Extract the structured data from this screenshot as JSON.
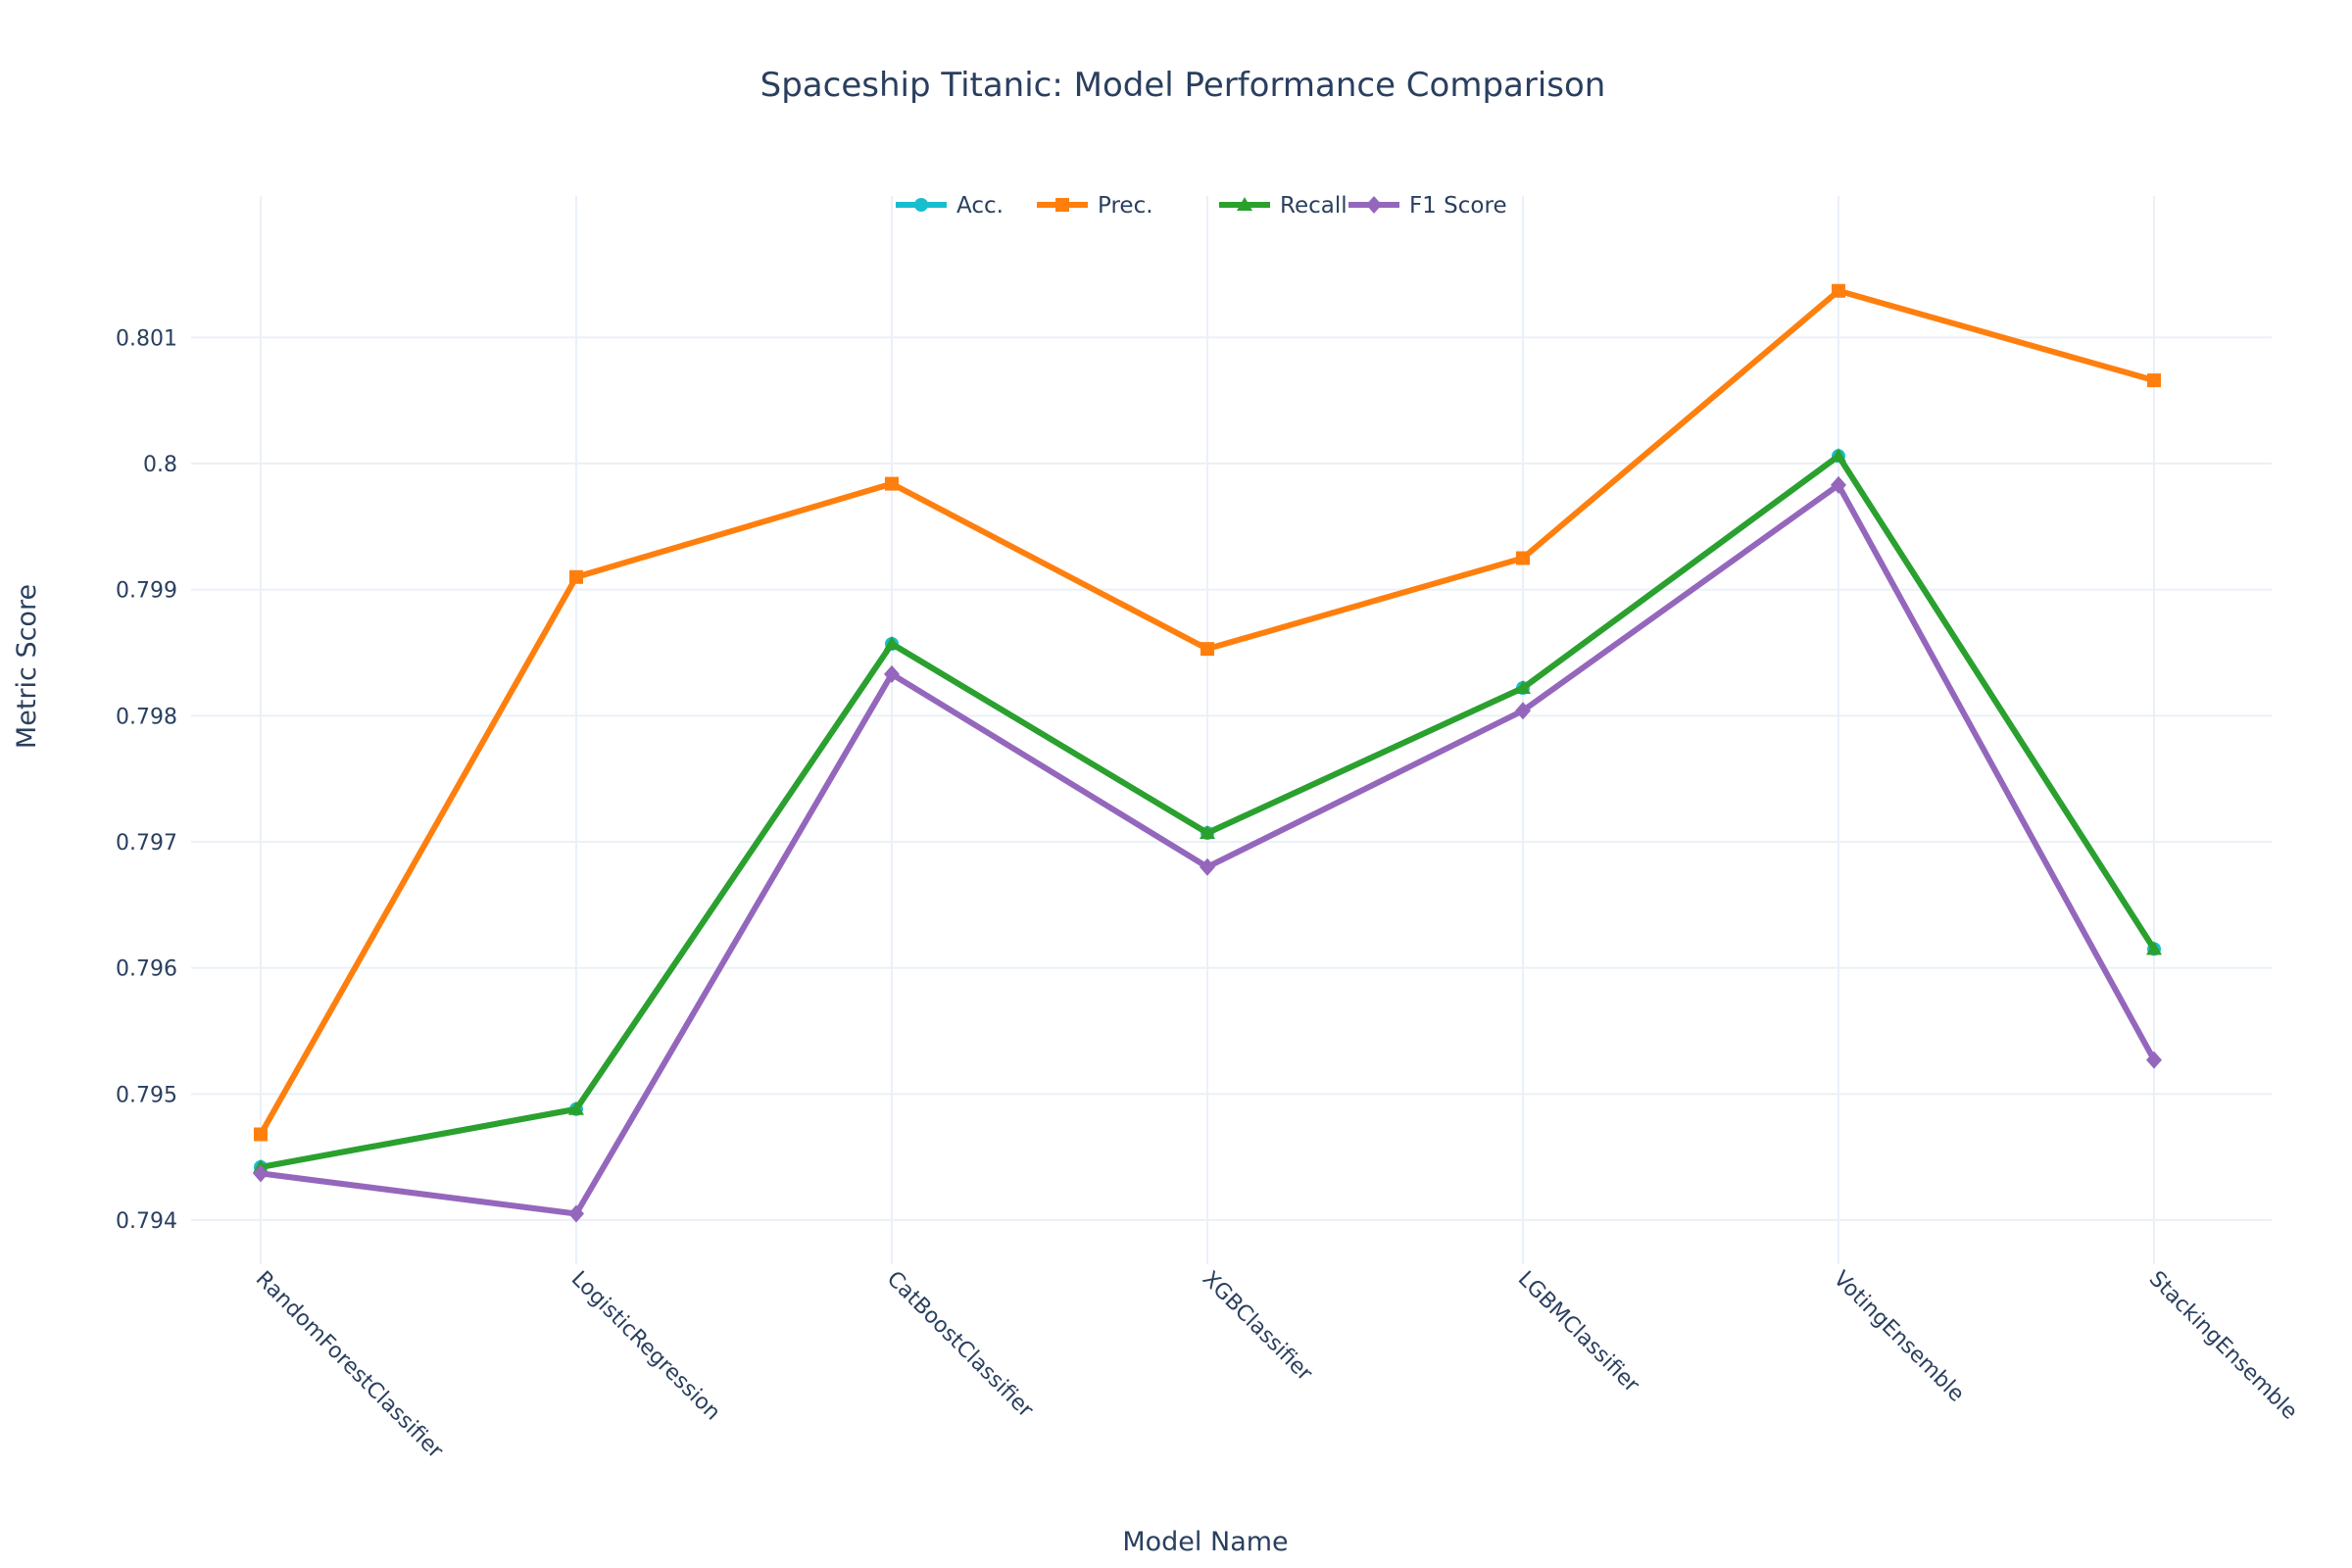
{
  "chart_data": {
    "type": "line",
    "title": "Spaceship Titanic: Model Performance Comparison",
    "xlabel": "Model Name",
    "ylabel": "Metric Score",
    "categories": [
      "RandomForestClassifier",
      "LogisticRegression",
      "CatBoostClassifier",
      "XGBClassifier",
      "LGBMClassifier",
      "VotingEnsemble",
      "StackingEnsemble"
    ],
    "ylim": [
      0.79365,
      0.80185
    ],
    "yticks": [
      0.794,
      0.795,
      0.796,
      0.797,
      0.798,
      0.799,
      0.8,
      0.801
    ],
    "ytick_labels": [
      "0.794",
      "0.795",
      "0.796",
      "0.797",
      "0.798",
      "0.799",
      "0.8",
      "0.801"
    ],
    "grid": true,
    "legend_position": "top-center",
    "series": [
      {
        "name": "Acc.",
        "color": "#17becf",
        "marker": "circle",
        "values": [
          0.79442,
          0.79488,
          0.79857,
          0.79707,
          0.79822,
          0.80006,
          0.79615
        ]
      },
      {
        "name": "Prec.",
        "color": "#ff7f0e",
        "marker": "square",
        "values": [
          0.79468,
          0.7991,
          0.79984,
          0.79853,
          0.79925,
          0.80137,
          0.80066
        ]
      },
      {
        "name": "Recall",
        "color": "#2ca02c",
        "marker": "triangle-up",
        "values": [
          0.79442,
          0.79488,
          0.79857,
          0.79707,
          0.79822,
          0.80006,
          0.79615
        ]
      },
      {
        "name": "F1 Score",
        "color": "#9467bd",
        "marker": "diamond",
        "values": [
          0.79437,
          0.79405,
          0.79833,
          0.7968,
          0.79804,
          0.79983,
          0.79527
        ]
      }
    ]
  }
}
